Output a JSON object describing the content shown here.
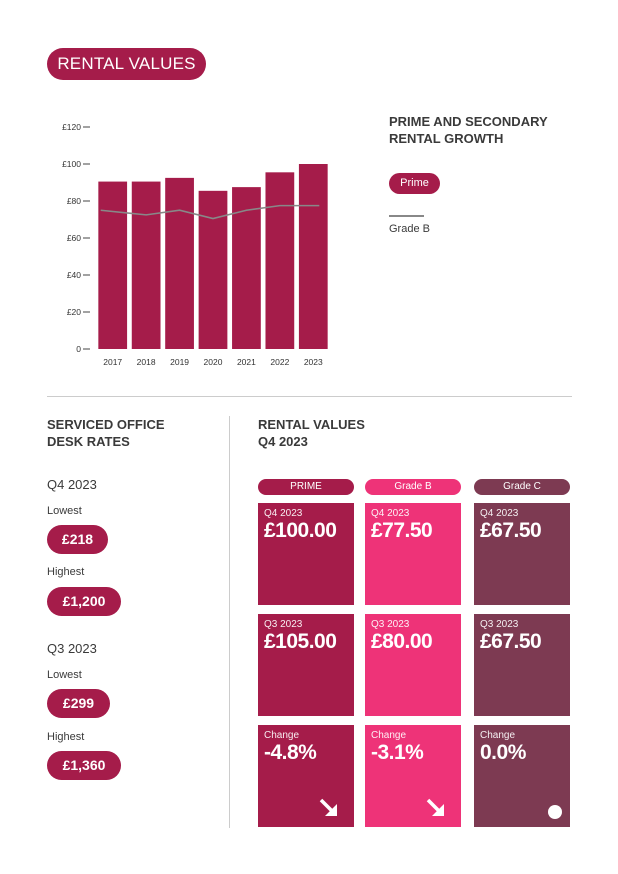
{
  "header": {
    "title": "RENTAL VALUES"
  },
  "chart_data": {
    "type": "bar",
    "categories": [
      "2017",
      "2018",
      "2019",
      "2020",
      "2021",
      "2022",
      "2023"
    ],
    "series": [
      {
        "name": "Prime",
        "type": "bar",
        "values": [
          90.5,
          90.5,
          92.5,
          85.5,
          87.5,
          95.5,
          100
        ]
      },
      {
        "name": "Grade B",
        "type": "line",
        "values": [
          75,
          72.5,
          75,
          70.5,
          75,
          77.5,
          77.5
        ]
      }
    ],
    "yticks": [
      0,
      20,
      40,
      60,
      80,
      100,
      120
    ],
    "ytick_labels": [
      "0",
      "£20",
      "£40",
      "£60",
      "£80",
      "£100",
      "£120"
    ],
    "ylim": [
      0,
      120
    ],
    "title": "PRIME AND SECONDARY RENTAL GROWTH",
    "legend": [
      "Prime",
      "Grade B"
    ]
  },
  "chart_side": {
    "title_line1": "PRIME AND SECONDARY",
    "title_line2": "RENTAL GROWTH",
    "legend_prime": "Prime",
    "legend_gradeb": "Grade B"
  },
  "colors": {
    "prime": "#a51c4a",
    "gradeb": "#ee3378",
    "gradec": "#7d3a52",
    "gradeb_line": "#888888"
  },
  "desk_rates": {
    "heading_line1": "SERVICED OFFICE",
    "heading_line2": "DESK RATES",
    "q4": {
      "label": "Q4 2023",
      "lowest_label": "Lowest",
      "lowest": "£218",
      "highest_label": "Highest",
      "highest": "£1,200"
    },
    "q3": {
      "label": "Q3 2023",
      "lowest_label": "Lowest",
      "lowest": "£299",
      "highest_label": "Highest",
      "highest": "£1,360"
    }
  },
  "rental_values": {
    "heading_line1": "RENTAL VALUES",
    "heading_line2": "Q4 2023",
    "columns": [
      {
        "name": "PRIME",
        "q4_label": "Q4 2023",
        "q4_value": "£100.00",
        "q3_label": "Q3 2023",
        "q3_value": "£105.00",
        "change_label": "Change",
        "change_value": "-4.8%",
        "trend_icon": "arrow-down-right-icon"
      },
      {
        "name": "Grade B",
        "q4_label": "Q4 2023",
        "q4_value": "£77.50",
        "q3_label": "Q3 2023",
        "q3_value": "£80.00",
        "change_label": "Change",
        "change_value": "-3.1%",
        "trend_icon": "arrow-down-right-icon"
      },
      {
        "name": "Grade C",
        "q4_label": "Q4 2023",
        "q4_value": "£67.50",
        "q3_label": "Q3 2023",
        "q3_value": "£67.50",
        "change_label": "Change",
        "change_value": "0.0%",
        "trend_icon": "dot-icon"
      }
    ]
  }
}
